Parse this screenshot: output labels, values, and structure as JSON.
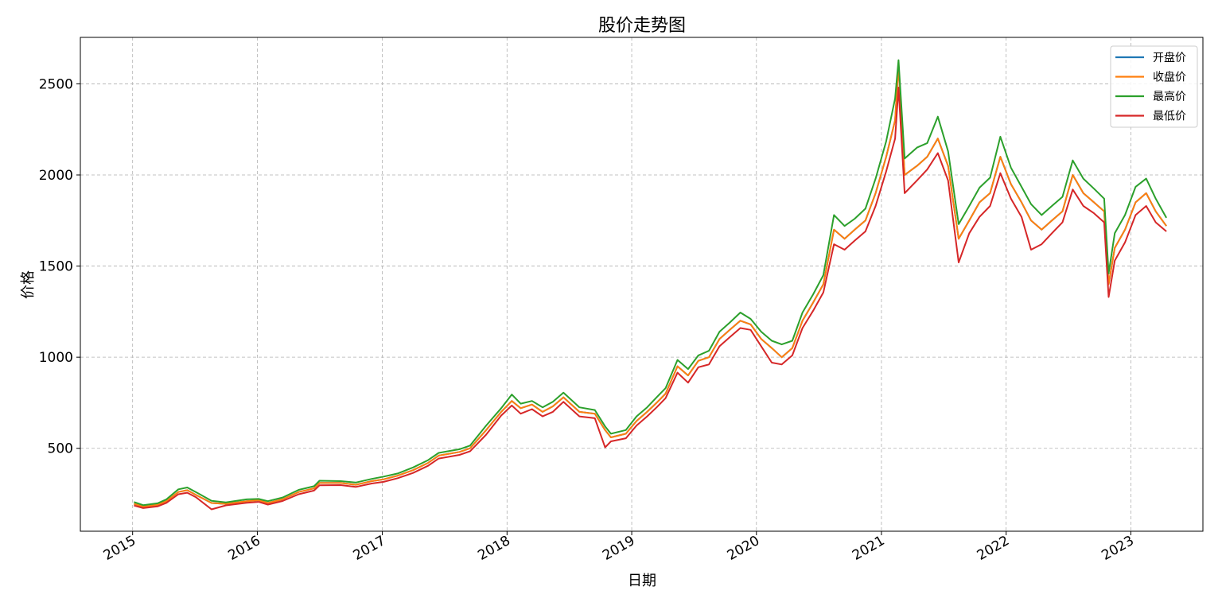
{
  "chart_data": {
    "type": "line",
    "title": "股价走势图",
    "xlabel": "日期",
    "ylabel": "价格",
    "xlim": [
      "2014-08-01",
      "2023-07-31"
    ],
    "ylim": [
      45,
      2755
    ],
    "x_ticks": [
      "2015",
      "2016",
      "2017",
      "2018",
      "2019",
      "2020",
      "2021",
      "2022",
      "2023"
    ],
    "y_ticks": [
      500,
      1000,
      1500,
      2000,
      2500
    ],
    "grid": true,
    "legend_position": "top-right",
    "series": [
      {
        "name": "开盘价",
        "color": "#1f77b4"
      },
      {
        "name": "收盘价",
        "color": "#ff7f0e"
      },
      {
        "name": "最高价",
        "color": "#2ca02c"
      },
      {
        "name": "最低价",
        "color": "#d62728"
      }
    ],
    "dates": [
      "2015-01-05",
      "2015-02-01",
      "2015-03-15",
      "2015-04-10",
      "2015-05-15",
      "2015-06-10",
      "2015-07-05",
      "2015-08-20",
      "2015-10-01",
      "2015-12-01",
      "2016-01-05",
      "2016-02-01",
      "2016-03-15",
      "2016-05-01",
      "2016-06-15",
      "2016-07-01",
      "2016-09-01",
      "2016-10-15",
      "2016-12-01",
      "2017-01-05",
      "2017-02-15",
      "2017-04-01",
      "2017-05-15",
      "2017-06-15",
      "2017-08-15",
      "2017-09-15",
      "2017-11-01",
      "2017-12-15",
      "2018-01-15",
      "2018-02-10",
      "2018-03-15",
      "2018-04-15",
      "2018-05-15",
      "2018-06-15",
      "2018-08-01",
      "2018-09-15",
      "2018-10-15",
      "2018-11-01",
      "2018-12-15",
      "2019-01-15",
      "2019-02-15",
      "2019-03-15",
      "2019-04-10",
      "2019-05-15",
      "2019-06-15",
      "2019-07-15",
      "2019-08-15",
      "2019-09-15",
      "2019-10-15",
      "2019-11-15",
      "2019-12-15",
      "2020-01-15",
      "2020-02-15",
      "2020-03-15",
      "2020-04-15",
      "2020-05-15",
      "2020-06-15",
      "2020-07-15",
      "2020-08-15",
      "2020-09-15",
      "2020-10-15",
      "2020-11-15",
      "2020-12-15",
      "2021-01-15",
      "2021-02-10",
      "2021-02-20",
      "2021-03-10",
      "2021-04-15",
      "2021-05-15",
      "2021-06-15",
      "2021-07-15",
      "2021-08-15",
      "2021-09-15",
      "2021-10-15",
      "2021-11-15",
      "2021-12-15",
      "2022-01-15",
      "2022-02-15",
      "2022-03-15",
      "2022-04-15",
      "2022-05-15",
      "2022-06-15",
      "2022-07-15",
      "2022-08-15",
      "2022-09-15",
      "2022-10-15",
      "2022-10-28",
      "2022-11-15",
      "2022-12-15",
      "2023-01-15",
      "2023-02-15",
      "2023-03-15",
      "2023-04-15"
    ],
    "close": [
      195,
      180,
      190,
      210,
      260,
      270,
      245,
      200,
      195,
      210,
      215,
      200,
      220,
      260,
      280,
      310,
      310,
      300,
      320,
      330,
      350,
      380,
      420,
      460,
      480,
      500,
      600,
      700,
      760,
      720,
      740,
      700,
      730,
      780,
      700,
      690,
      600,
      560,
      580,
      650,
      700,
      750,
      800,
      950,
      900,
      980,
      1000,
      1100,
      1150,
      1200,
      1180,
      1100,
      1050,
      1000,
      1050,
      1200,
      1300,
      1400,
      1700,
      1650,
      1700,
      1750,
      1900,
      2100,
      2300,
      2600,
      2000,
      2050,
      2100,
      2200,
      2050,
      1650,
      1750,
      1850,
      1900,
      2100,
      1950,
      1850,
      1750,
      1700,
      1750,
      1800,
      2000,
      1900,
      1850,
      1800,
      1400,
      1600,
      1700,
      1850,
      1900,
      1800,
      1720
    ],
    "high": [
      205,
      188,
      198,
      220,
      275,
      285,
      260,
      212,
      203,
      220,
      222,
      210,
      230,
      272,
      292,
      322,
      320,
      312,
      332,
      345,
      362,
      395,
      435,
      475,
      495,
      515,
      625,
      720,
      795,
      745,
      760,
      725,
      755,
      805,
      725,
      710,
      620,
      580,
      600,
      675,
      725,
      780,
      830,
      985,
      935,
      1010,
      1035,
      1140,
      1190,
      1245,
      1210,
      1140,
      1090,
      1070,
      1090,
      1245,
      1345,
      1450,
      1780,
      1720,
      1760,
      1815,
      1980,
      2185,
      2420,
      2630,
      2090,
      2150,
      2175,
      2320,
      2130,
      1730,
      1830,
      1930,
      1985,
      2210,
      2040,
      1935,
      1840,
      1780,
      1830,
      1880,
      2080,
      1980,
      1925,
      1870,
      1460,
      1680,
      1780,
      1935,
      1980,
      1870,
      1765
    ],
    "low": [
      186,
      172,
      181,
      201,
      248,
      256,
      232,
      165,
      187,
      201,
      206,
      191,
      211,
      248,
      268,
      297,
      298,
      288,
      307,
      316,
      336,
      365,
      404,
      444,
      464,
      484,
      575,
      680,
      735,
      690,
      715,
      675,
      700,
      755,
      675,
      665,
      505,
      538,
      555,
      625,
      675,
      725,
      775,
      915,
      860,
      945,
      960,
      1060,
      1110,
      1160,
      1150,
      1060,
      970,
      960,
      1010,
      1160,
      1255,
      1355,
      1620,
      1590,
      1640,
      1690,
      1830,
      2020,
      2200,
      2480,
      1900,
      1970,
      2030,
      2120,
      1970,
      1520,
      1680,
      1770,
      1830,
      2010,
      1870,
      1770,
      1590,
      1620,
      1680,
      1740,
      1920,
      1830,
      1790,
      1740,
      1330,
      1530,
      1630,
      1780,
      1830,
      1740,
      1690
    ]
  }
}
